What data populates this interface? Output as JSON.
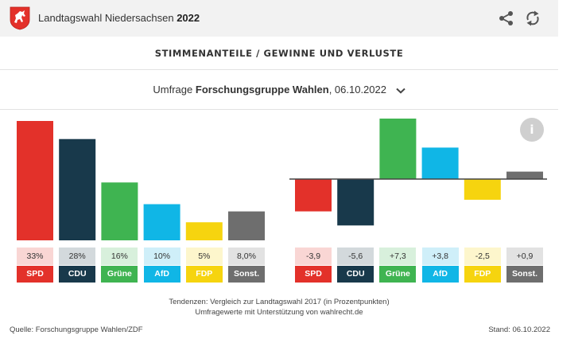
{
  "header": {
    "title_prefix": "Landtagswahl Niedersachsen",
    "title_year": "2022",
    "icons": [
      "horse-crest-logo",
      "share-icon",
      "refresh-icon"
    ]
  },
  "section_title": "STIMMENANTEILE / GEWINNE UND VERLUSTE",
  "survey": {
    "prefix": "Umfrage",
    "institute": "Forschungsgruppe Wahlen",
    "date": ", 06.10.2022"
  },
  "info_label": "i",
  "chart_data": [
    {
      "type": "bar",
      "categories": [
        "SPD",
        "CDU",
        "Grüne",
        "AfD",
        "FDP",
        "Sonst."
      ],
      "values": [
        33,
        28,
        16,
        10,
        5,
        8.0
      ],
      "value_labels": [
        "33%",
        "28%",
        "16%",
        "10%",
        "5%",
        "8,0%"
      ],
      "ylim": [
        0,
        33
      ]
    },
    {
      "type": "bar",
      "categories": [
        "SPD",
        "CDU",
        "Grüne",
        "AfD",
        "FDP",
        "Sonst."
      ],
      "values": [
        -3.9,
        -5.6,
        7.3,
        3.8,
        -2.5,
        0.9
      ],
      "value_labels": [
        "-3,9",
        "-5,6",
        "+7,3",
        "+3,8",
        "-2,5",
        "+0,9"
      ],
      "ylim": [
        -5.6,
        7.3
      ]
    }
  ],
  "colors": {
    "SPD": "#e3312a",
    "CDU": "#18394b",
    "Grüne": "#3fb451",
    "AfD": "#10b6e6",
    "FDP": "#f6d40f",
    "Sonst.": "#6e6e6e"
  },
  "tint_colors": {
    "SPD": "#f9d6d4",
    "CDU": "#d3d9dc",
    "Grüne": "#d8f0dc",
    "AfD": "#cfeff9",
    "FDP": "#fdf6cc",
    "Sonst.": "#e2e2e2"
  },
  "notes": {
    "line1": "Tendenzen: Vergleich zur Landtagswahl 2017 (in Prozentpunkten)",
    "line2": "Umfragewerte mit Unterstützung von wahlrecht.de"
  },
  "footer": {
    "source": "Quelle: Forschungsgruppe Wahlen/ZDF",
    "stand": "Stand: 06.10.2022"
  }
}
